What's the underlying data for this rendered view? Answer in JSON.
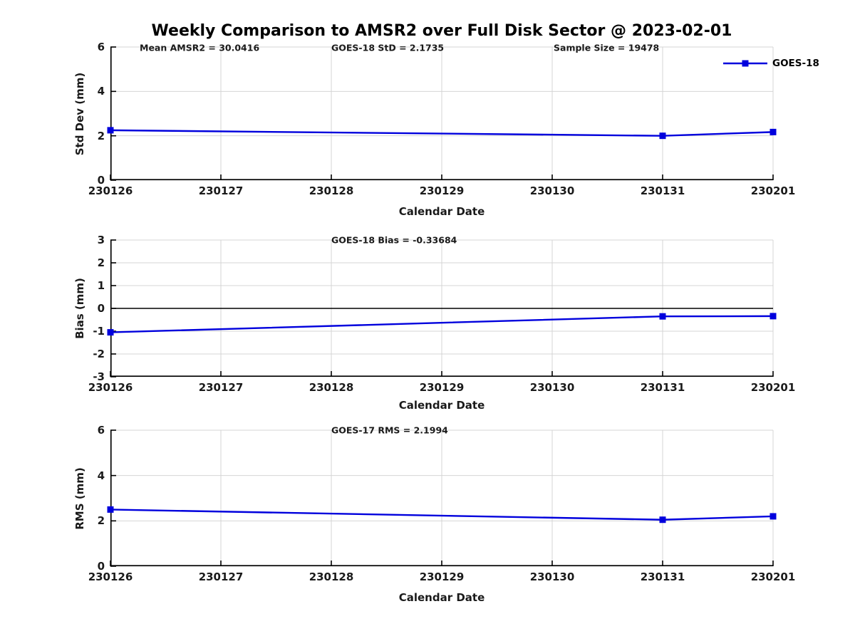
{
  "title": "Weekly Comparison to AMSR2 over Full Disk Sector @ 2023-02-01",
  "colors": {
    "line": "#0000dd",
    "grid": "#d4d4d4",
    "axis": "#000000",
    "text": "#1a1a1a"
  },
  "chart_data": [
    {
      "type": "line",
      "name": "std-dev-panel",
      "ylabel": "Std Dev (mm)",
      "xlabel": "Calendar Date",
      "annotations": [
        {
          "text": "Mean AMSR2 = 30.0416"
        },
        {
          "text": "GOES-18 StD = 2.1735"
        },
        {
          "text": "Sample Size = 19478"
        }
      ],
      "legend": {
        "label": "GOES-18"
      },
      "xticks": [
        "230126",
        "230127",
        "230128",
        "230129",
        "230130",
        "230131",
        "230201"
      ],
      "yticks": [
        0,
        2,
        4,
        6
      ],
      "ylim": [
        0,
        6
      ],
      "grid": true,
      "zero_line": false,
      "series": [
        {
          "name": "GOES-18",
          "points": [
            {
              "x": "230126",
              "y": 2.25
            },
            {
              "x": "230131",
              "y": 2.0
            },
            {
              "x": "230201",
              "y": 2.17
            }
          ]
        }
      ]
    },
    {
      "type": "line",
      "name": "bias-panel",
      "ylabel": "Bias (mm)",
      "xlabel": "Calendar Date",
      "annotations": [
        {
          "text": "GOES-18 Bias  = -0.33684"
        }
      ],
      "xticks": [
        "230126",
        "230127",
        "230128",
        "230129",
        "230130",
        "230131",
        "230201"
      ],
      "yticks": [
        -3,
        -2,
        -1,
        0,
        1,
        2,
        3
      ],
      "ylim": [
        -3,
        3
      ],
      "grid": true,
      "zero_line": true,
      "series": [
        {
          "name": "GOES-18",
          "points": [
            {
              "x": "230126",
              "y": -1.05
            },
            {
              "x": "230131",
              "y": -0.35
            },
            {
              "x": "230201",
              "y": -0.34
            }
          ]
        }
      ]
    },
    {
      "type": "line",
      "name": "rms-panel",
      "ylabel": "RMS (mm)",
      "xlabel": "Calendar Date",
      "annotations": [
        {
          "text": "GOES-17 RMS = 2.1994"
        }
      ],
      "xticks": [
        "230126",
        "230127",
        "230128",
        "230129",
        "230130",
        "230131",
        "230201"
      ],
      "yticks": [
        0,
        2,
        4,
        6
      ],
      "ylim": [
        0,
        6
      ],
      "grid": true,
      "zero_line": false,
      "series": [
        {
          "name": "GOES-18",
          "points": [
            {
              "x": "230126",
              "y": 2.5
            },
            {
              "x": "230131",
              "y": 2.05
            },
            {
              "x": "230201",
              "y": 2.2
            }
          ]
        }
      ]
    }
  ]
}
